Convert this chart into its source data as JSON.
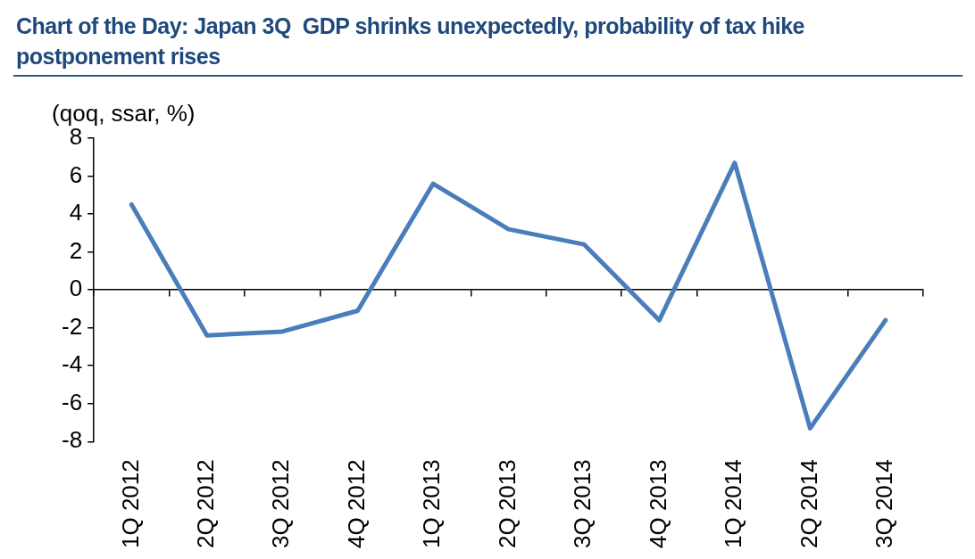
{
  "chart_data": {
    "type": "line",
    "title": "Chart of the Day: Japan 3Q  GDP shrinks unexpectedly, probability of tax hike postponement rises",
    "ylabel": "(qoq, ssar, %)",
    "categories": [
      "1Q 2012",
      "2Q 2012",
      "3Q 2012",
      "4Q 2012",
      "1Q 2013",
      "2Q 2013",
      "3Q 2013",
      "4Q 2013",
      "1Q 2014",
      "2Q 2014",
      "3Q 2014"
    ],
    "series": [
      {
        "color": "#4a7ebb",
        "values": [
          4.5,
          -2.4,
          -2.2,
          -1.1,
          5.6,
          3.2,
          2.4,
          -1.6,
          6.7,
          -7.3,
          -1.6
        ]
      }
    ],
    "ylim": [
      -8,
      8
    ],
    "yticks": [
      -8,
      -6,
      -4,
      -2,
      0,
      2,
      4,
      6,
      8
    ]
  }
}
